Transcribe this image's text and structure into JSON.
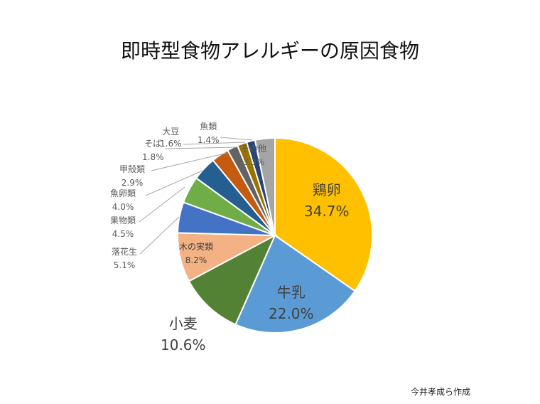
{
  "chart_data": {
    "type": "pie",
    "title": "即時型食物アレルギーの原因食物",
    "start": "top",
    "direction": "clockwise",
    "slices": [
      {
        "label": "鶏卵",
        "value": 34.7,
        "text": "34.7%",
        "color": "#FFC000"
      },
      {
        "label": "牛乳",
        "value": 22.0,
        "text": "22.0%",
        "color": "#5B9BD5"
      },
      {
        "label": "小麦",
        "value": 10.6,
        "text": "10.6%",
        "color": "#548235"
      },
      {
        "label": "木の実類",
        "value": 8.2,
        "text": "8.2%",
        "color": "#F4B183"
      },
      {
        "label": "落花生",
        "value": 5.1,
        "text": "5.1%",
        "color": "#4472C4"
      },
      {
        "label": "果物類",
        "value": 4.5,
        "text": "4.5%",
        "color": "#70AD47"
      },
      {
        "label": "魚卵類",
        "value": 4.0,
        "text": "4.0%",
        "color": "#255E91"
      },
      {
        "label": "甲殻類",
        "value": 2.9,
        "text": "2.9%",
        "color": "#C55A11"
      },
      {
        "label": "そば",
        "value": 1.8,
        "text": "1.8%",
        "color": "#636363"
      },
      {
        "label": "大豆",
        "value": 1.6,
        "text": "1.6%",
        "color": "#997300"
      },
      {
        "label": "魚類",
        "value": 1.4,
        "text": "1.4%",
        "color": "#264478"
      },
      {
        "label": "その他",
        "value": 3.3,
        "text": "3.3%",
        "color": "#A5A5A5"
      }
    ]
  },
  "credit": "今井孝成ら作成"
}
